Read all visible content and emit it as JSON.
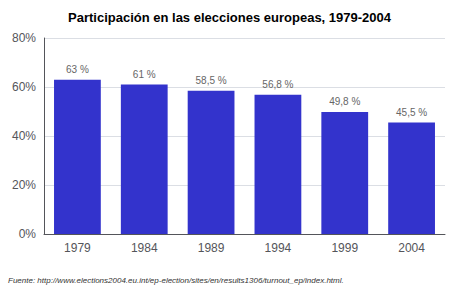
{
  "chart_data": {
    "type": "bar",
    "title": "Participación en las elecciones europeas, 1979-2004",
    "categories": [
      "1979",
      "1984",
      "1989",
      "1994",
      "1999",
      "2004"
    ],
    "values": [
      63.0,
      61.0,
      58.5,
      56.8,
      49.8,
      45.5
    ],
    "value_labels": [
      "63 %",
      "61 %",
      "58,5 %",
      "56,8 %",
      "49,8 %",
      "45,5 %"
    ],
    "data_labels": true,
    "color": "#3333cc",
    "ylim": [
      0,
      80
    ],
    "yticks": [
      {
        "value": 0,
        "label": "0%"
      },
      {
        "value": 20,
        "label": "20%"
      },
      {
        "value": 40,
        "label": "40%"
      },
      {
        "value": 60,
        "label": "60%"
      },
      {
        "value": 80,
        "label": "80%"
      }
    ],
    "grid": true,
    "annotations": [
      "Fuente: http://www.elections2004.eu.int/ep-election/sites/en/results1306/turnout_ep/index.html."
    ]
  }
}
